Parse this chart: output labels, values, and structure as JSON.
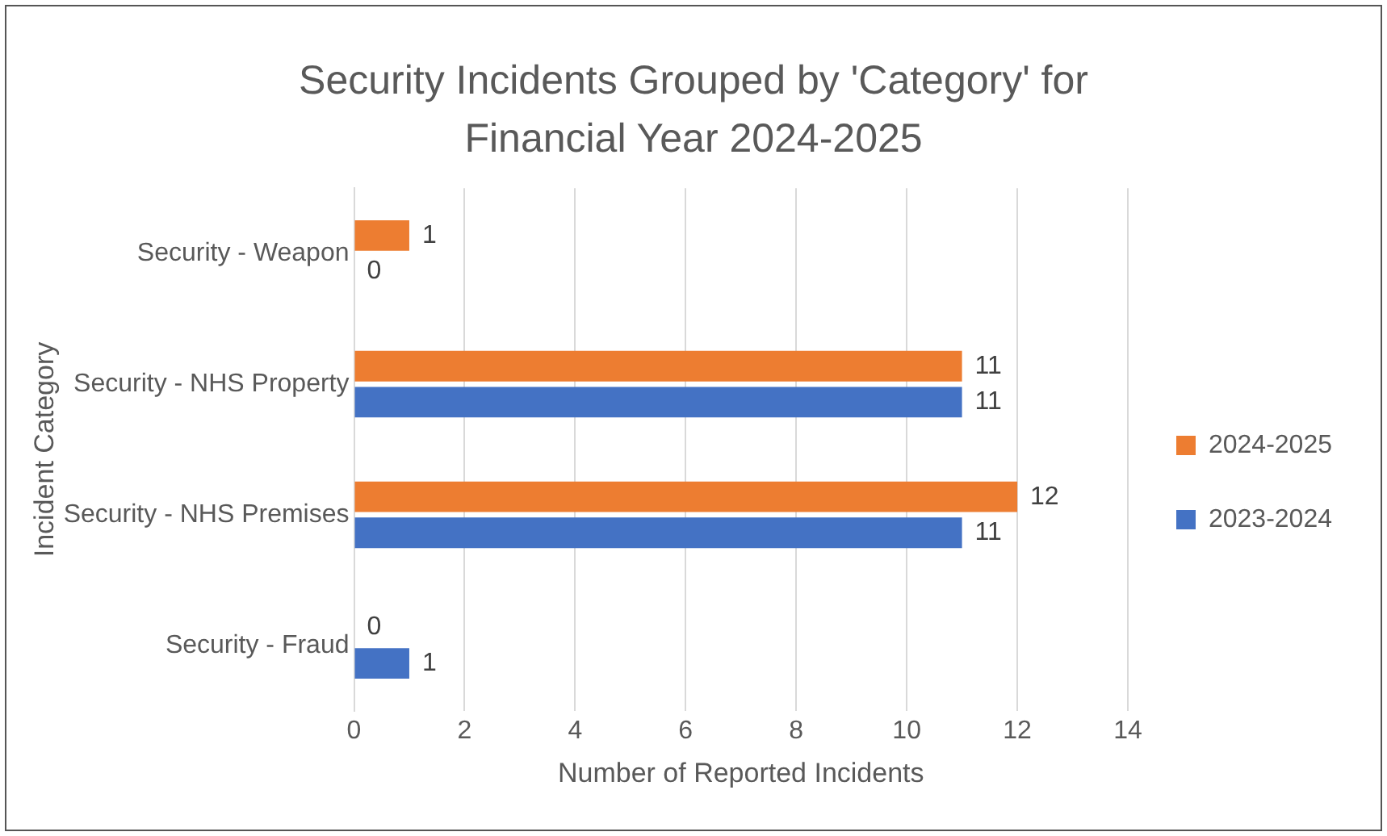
{
  "chart_data": {
    "type": "bar",
    "orientation": "horizontal",
    "title": "Security Incidents Grouped by 'Category' for Financial Year 2024-2025",
    "xlabel": "Number of Reported Incidents",
    "ylabel": "Incident Category",
    "categories": [
      "Security - Weapon",
      "Security - NHS Property",
      "Security - NHS Premises",
      "Security - Fraud"
    ],
    "series": [
      {
        "name": "2024-2025",
        "color": "#ed7d31",
        "values": [
          1,
          11,
          12,
          0
        ]
      },
      {
        "name": "2023-2024",
        "color": "#4472c4",
        "values": [
          0,
          11,
          11,
          1
        ]
      }
    ],
    "xlim": [
      0,
      14
    ],
    "xticks": [
      0,
      2,
      4,
      6,
      8,
      10,
      12,
      14
    ],
    "grid": "x",
    "legend": "right",
    "data_labels": true
  }
}
